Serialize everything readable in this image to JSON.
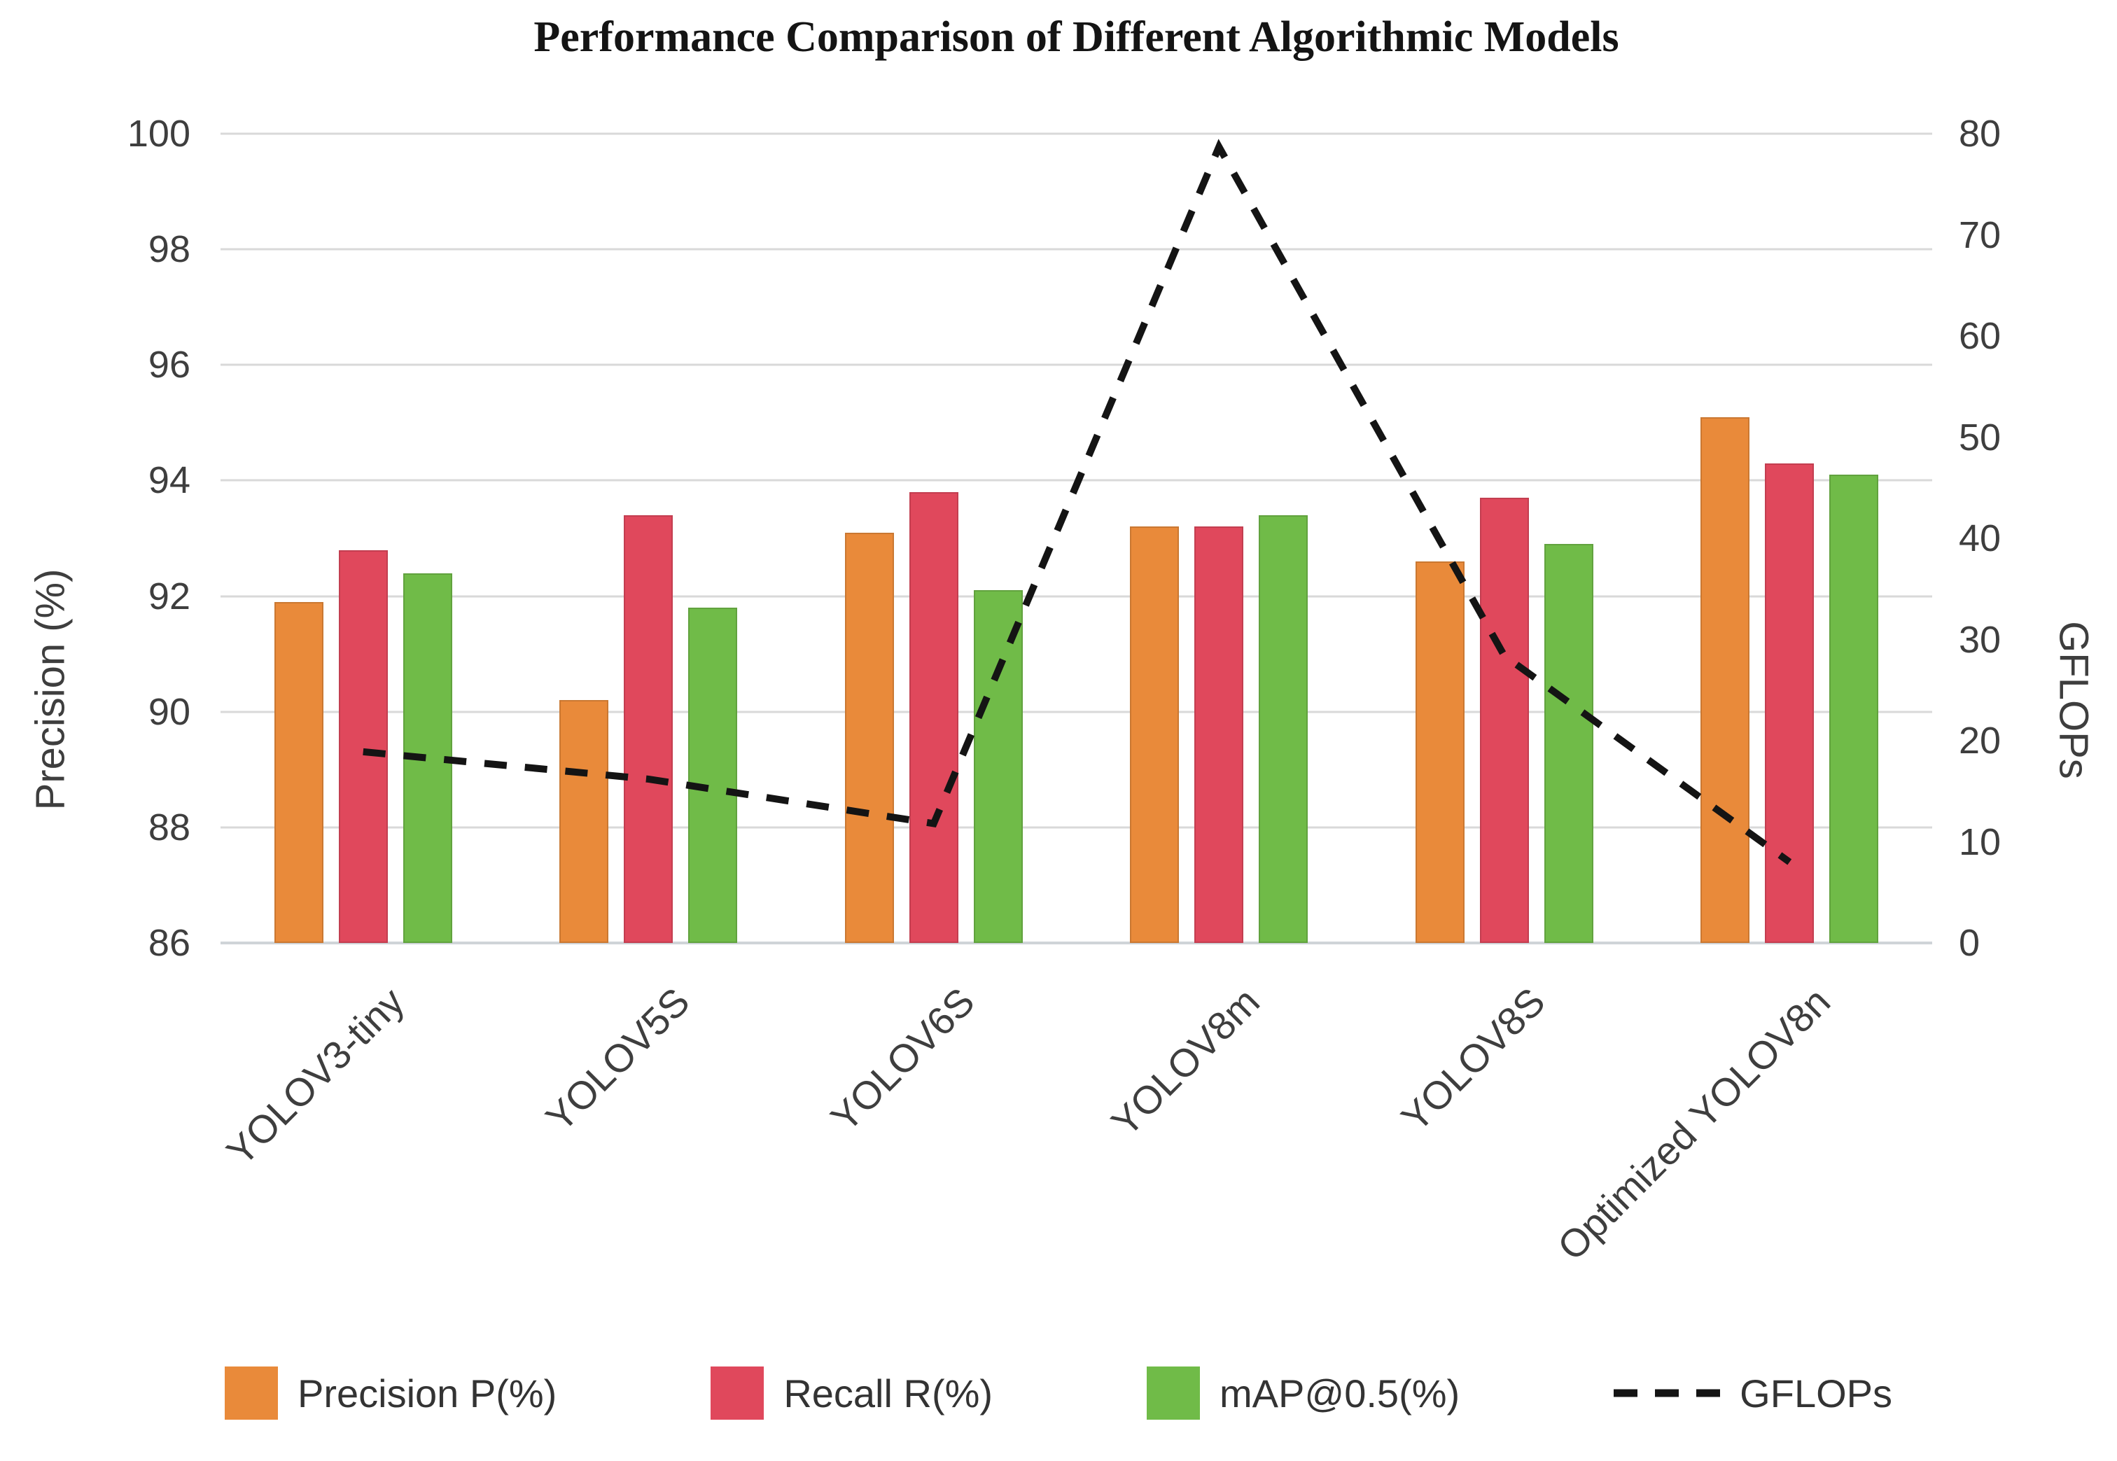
{
  "chart_data": {
    "type": "bar",
    "title": "Performance Comparison of Different Algorithmic Models",
    "categories": [
      "YOLOV3-tiny",
      "YOLOV5S",
      "YOLOV6S",
      "YOLOV8m",
      "YOLOV8S",
      "Optimized YOLOV8n"
    ],
    "series": [
      {
        "key": "precision",
        "name": "Precision P(%)",
        "axis": "left",
        "color": "#E98A3A",
        "values": [
          91.9,
          90.2,
          93.1,
          93.2,
          92.6,
          95.1
        ]
      },
      {
        "key": "recall",
        "name": "Recall R(%)",
        "axis": "left",
        "color": "#E0485C",
        "values": [
          92.8,
          93.4,
          93.8,
          93.2,
          93.7,
          94.3
        ]
      },
      {
        "key": "map50",
        "name": "mAP@0.5(%)",
        "axis": "left",
        "color": "#70BB48",
        "values": [
          92.4,
          91.8,
          92.1,
          93.4,
          92.9,
          94.1
        ]
      }
    ],
    "line_series": {
      "key": "gflops",
      "name": "GFLOPs",
      "axis": "right",
      "style": "dashed",
      "color": "#141414",
      "values": [
        18.9,
        16.2,
        11.8,
        78.7,
        28.4,
        8.0
      ]
    },
    "left_axis": {
      "label": "Precision (%)",
      "min": 86,
      "max": 100,
      "ticks": [
        86,
        88,
        90,
        92,
        94,
        96,
        98,
        100
      ]
    },
    "right_axis": {
      "label": "GFLOPs",
      "min": 0,
      "max": 80,
      "ticks": [
        0,
        10,
        20,
        30,
        40,
        50,
        60,
        70,
        80
      ]
    },
    "grid": true,
    "legend_position": "bottom",
    "palette": {
      "gridline": "#D9D9D9",
      "tick_text": "#3E3E3E",
      "title_text": "#141414",
      "background": "#FFFFFF"
    }
  }
}
